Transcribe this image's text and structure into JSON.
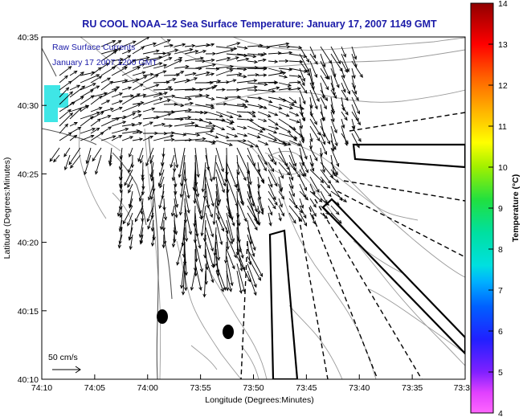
{
  "title": "RU COOL  NOAA–12  Sea Surface Temperature:  January 17, 2007 1149 GMT",
  "legend": {
    "line1": "Raw Surface Currents",
    "line2": "January 17 2007 1200 GMT"
  },
  "scale": {
    "label": "50 cm/s"
  },
  "axes": {
    "xlabel": "Longitude (Degrees:Minutes)",
    "ylabel": "Latitude (Degrees:Minutes)",
    "xticks": [
      "74:10",
      "74:05",
      "74:00",
      "73:55",
      "73:50",
      "73:45",
      "73:40",
      "73:35",
      "73:3"
    ],
    "yticks": [
      "40:35",
      "40:30",
      "40:25",
      "40:20",
      "40:15",
      "40:10"
    ]
  },
  "colorbar": {
    "label": "Temperature (°C)",
    "ticks": [
      "14",
      "13",
      "12",
      "11",
      "10",
      "9",
      "8",
      "7",
      "6",
      "5",
      "4"
    ]
  },
  "colors": {
    "title": "#1a1aa8",
    "sst_patch": "#3fe6e6",
    "land_contour": "#999999"
  }
}
